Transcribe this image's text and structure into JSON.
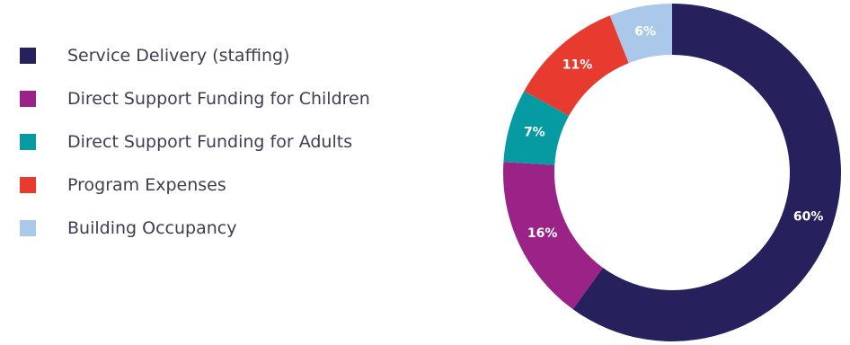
{
  "chart_data": {
    "type": "pie",
    "variant": "donut",
    "title": "",
    "legend_position": "left",
    "slices": [
      {
        "label": "Service Delivery (staffing)",
        "value": 60,
        "display": "60%",
        "color": "#26215c"
      },
      {
        "label": "Direct Support Funding for Children",
        "value": 16,
        "display": "16%",
        "color": "#9b2387"
      },
      {
        "label": "Direct Support Funding for Adults",
        "value": 7,
        "display": "7%",
        "color": "#069ba3"
      },
      {
        "label": "Program Expenses",
        "value": 11,
        "display": "11%",
        "color": "#e63b2e"
      },
      {
        "label": "Building Occupancy",
        "value": 6,
        "display": "6%",
        "color": "#a9c8ea"
      }
    ]
  }
}
